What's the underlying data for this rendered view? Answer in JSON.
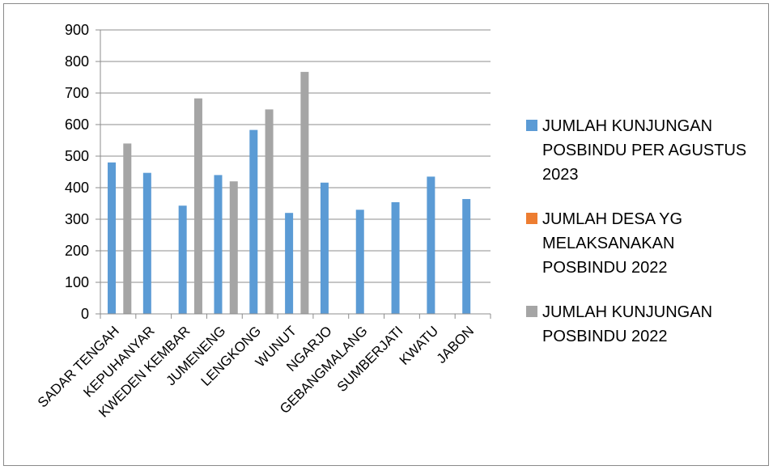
{
  "chart_data": {
    "type": "bar",
    "title": "",
    "xlabel": "",
    "ylabel": "",
    "ylim": [
      0,
      900
    ],
    "yticks": [
      0,
      100,
      200,
      300,
      400,
      500,
      600,
      700,
      800,
      900
    ],
    "grid": true,
    "legend_position": "right",
    "categories": [
      "SADAR TENGAH",
      "KEPUHANYAR",
      "KWEDEN KEMBAR",
      "JUMENENG",
      "LENGKONG",
      "WUNUT",
      "NGARJO",
      "GEBANGMALANG",
      "SUMBERJATI",
      "KWATU",
      "JABON"
    ],
    "series": [
      {
        "name": "JUMLAH KUNJUNGAN POSBINDU PER AGUSTUS 2023",
        "legend_lines": [
          "JUMLAH KUNJUNGAN",
          "POSBINDU PER AGUSTUS",
          "2023"
        ],
        "color": "#5b9bd5",
        "values": [
          480,
          447,
          343,
          440,
          583,
          320,
          416,
          330,
          354,
          435,
          364
        ]
      },
      {
        "name": "JUMLAH DESA YG MELAKSANAKAN POSBINDU 2022",
        "legend_lines": [
          "JUMLAH DESA YG",
          "MELAKSANAKAN",
          "POSBINDU 2022"
        ],
        "color": "#ed7d31",
        "values": [
          null,
          null,
          null,
          null,
          null,
          null,
          null,
          null,
          null,
          null,
          null
        ]
      },
      {
        "name": "JUMLAH KUNJUNGAN POSBINDU 2022",
        "legend_lines": [
          "JUMLAH KUNJUNGAN",
          "POSBINDU 2022"
        ],
        "color": "#a5a5a5",
        "values": [
          540,
          null,
          683,
          420,
          648,
          767,
          null,
          null,
          null,
          null,
          null
        ]
      }
    ]
  }
}
